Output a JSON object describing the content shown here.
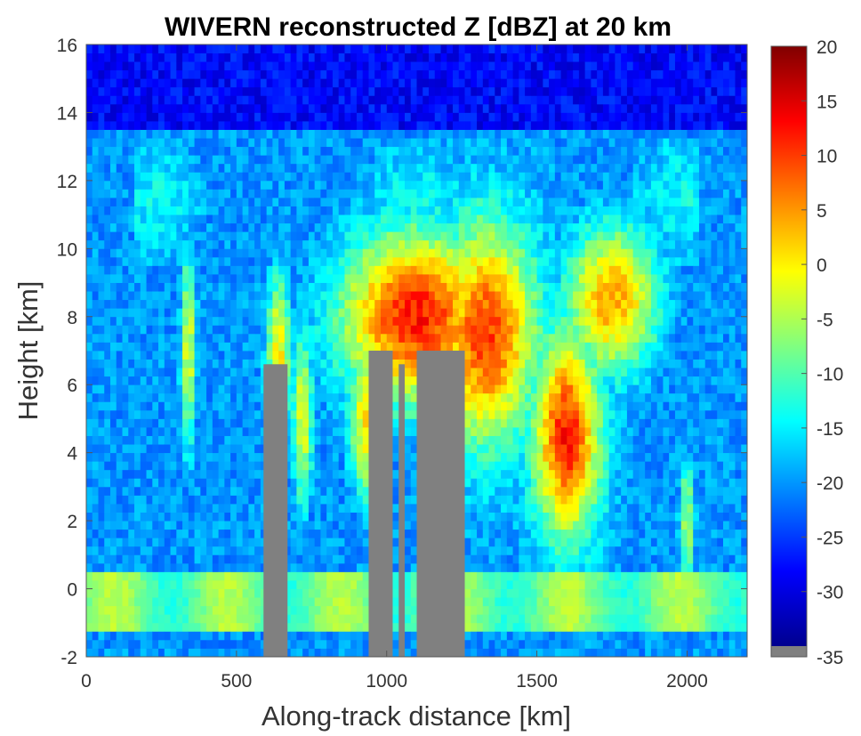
{
  "chart_data": {
    "type": "heatmap",
    "title": "WIVERN reconstructed Z [dBZ] at 20 km",
    "xlabel": "Along-track distance [km]",
    "ylabel": "Height [km]",
    "xlim": [
      0,
      2200
    ],
    "ylim": [
      -2,
      16
    ],
    "xticks": [
      "0",
      "500",
      "1000",
      "1500",
      "2000"
    ],
    "yticks": [
      "-2",
      "0",
      "2",
      "4",
      "6",
      "8",
      "10",
      "12",
      "14",
      "16"
    ],
    "colorbar": {
      "label": "",
      "range": [
        -35,
        20
      ],
      "ticks": [
        "20",
        "15",
        "10",
        "5",
        "0",
        "-5",
        "-10",
        "-15",
        "-20",
        "-25",
        "-30",
        "-35"
      ],
      "colormap": "jet",
      "bottom_color": "#808080"
    },
    "grid": false,
    "cell_size_km": [
      20,
      0.25
    ],
    "surface_clutter_band": {
      "height_range_km": [
        -1.25,
        0.5
      ],
      "value_dbz": -8
    },
    "blocked_regions_gray": [
      {
        "x_range_km": [
          590,
          670
        ],
        "height_range_km": [
          -2,
          6.6
        ]
      },
      {
        "x_range_km": [
          940,
          1020
        ],
        "height_range_km": [
          -2,
          7.0
        ]
      },
      {
        "x_range_km": [
          1040,
          1060
        ],
        "height_range_km": [
          -2,
          6.6
        ]
      },
      {
        "x_range_km": [
          1100,
          1260
        ],
        "height_range_km": [
          -2,
          7.0
        ]
      }
    ],
    "main_cloud_features": [
      {
        "x_range_km": [
          150,
          2050
        ],
        "top_km": 13.0,
        "anvil_dbz": -20
      },
      {
        "x_center_km": 1100,
        "height_range_km": [
          4,
          11
        ],
        "peak_dbz": 12
      },
      {
        "x_center_km": 1600,
        "height_range_km": [
          2,
          8
        ],
        "peak_dbz": 12
      }
    ]
  }
}
